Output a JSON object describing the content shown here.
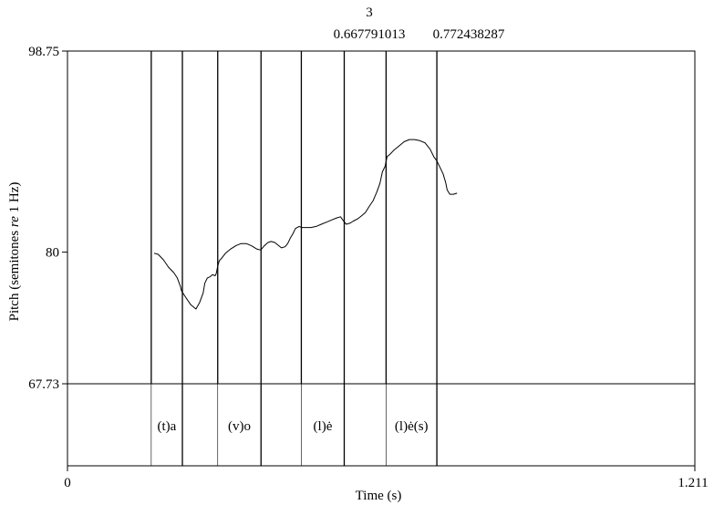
{
  "chart_data": {
    "type": "line",
    "xlabel": "Time (s)",
    "ylabel_parts": [
      "Pitch (semitones ",
      "re",
      " 1 Hz)"
    ],
    "xlim": [
      0,
      1.211
    ],
    "ylim": [
      67.73,
      98.75
    ],
    "x_ticks": [
      {
        "value": 0,
        "label": "0"
      },
      {
        "value": 1.211,
        "label": "1.211"
      }
    ],
    "y_ticks": [
      {
        "value": 98.75,
        "label": "98.75"
      },
      {
        "value": 80,
        "label": "80"
      },
      {
        "value": 67.73,
        "label": "67.73"
      }
    ],
    "top_annotations": [
      "3",
      "0.667791013",
      "0.772438287"
    ],
    "boundaries": [
      0.1617,
      0.2218,
      0.29,
      0.3736,
      0.4514,
      0.5342,
      0.615,
      0.713
    ],
    "boundary_minor": [
      false,
      true,
      false,
      true,
      false,
      true,
      false,
      true
    ],
    "segments": [
      {
        "label": "(t)a",
        "start": 0.1617,
        "end": 0.2218
      },
      {
        "label": "(v)o",
        "start": 0.29,
        "end": 0.3736
      },
      {
        "label": "(l)ė",
        "start": 0.4514,
        "end": 0.5342
      },
      {
        "label": "(l)ė(s)",
        "start": 0.615,
        "end": 0.713
      }
    ],
    "series": [
      {
        "x": [
          0.167,
          0.175,
          0.185,
          0.195,
          0.205,
          0.212,
          0.218,
          0.22,
          0.228,
          0.238,
          0.248,
          0.255,
          0.262,
          0.265,
          0.27,
          0.275,
          0.28,
          0.285,
          0.287,
          0.29,
          0.293,
          0.297,
          0.305,
          0.315,
          0.325,
          0.335,
          0.345,
          0.355,
          0.365,
          0.373,
          0.38,
          0.387,
          0.393,
          0.4,
          0.408,
          0.413,
          0.42,
          0.425,
          0.43,
          0.435,
          0.44,
          0.447,
          0.452,
          0.46,
          0.47,
          0.48,
          0.49,
          0.5,
          0.51,
          0.52,
          0.527,
          0.533,
          0.538,
          0.545,
          0.552,
          0.56,
          0.568,
          0.575,
          0.583,
          0.59,
          0.597,
          0.603,
          0.608,
          0.613,
          0.617,
          0.622,
          0.63,
          0.64,
          0.65,
          0.66,
          0.67,
          0.68,
          0.69,
          0.7,
          0.707,
          0.713,
          0.72,
          0.725,
          0.73,
          0.733,
          0.738,
          0.745,
          0.752
        ],
        "y": [
          79.9,
          79.8,
          79.3,
          78.6,
          78.1,
          77.6,
          76.8,
          76.4,
          75.8,
          75.1,
          74.7,
          75.3,
          76.2,
          77.1,
          77.6,
          77.7,
          77.9,
          77.8,
          78.0,
          78.7,
          79.2,
          79.4,
          79.9,
          80.3,
          80.6,
          80.8,
          80.8,
          80.6,
          80.3,
          80.2,
          80.6,
          80.9,
          81.0,
          80.9,
          80.6,
          80.4,
          80.5,
          80.8,
          81.3,
          81.7,
          82.2,
          82.4,
          82.3,
          82.3,
          82.3,
          82.4,
          82.6,
          82.8,
          83.0,
          83.2,
          83.3,
          82.9,
          82.6,
          82.7,
          82.9,
          83.1,
          83.4,
          83.7,
          84.3,
          84.8,
          85.6,
          86.4,
          87.5,
          88.0,
          88.9,
          89.1,
          89.5,
          89.9,
          90.3,
          90.5,
          90.5,
          90.4,
          90.2,
          89.6,
          88.9,
          88.5,
          87.8,
          87.3,
          86.5,
          85.8,
          85.4,
          85.4,
          85.5
        ]
      }
    ],
    "grid": false
  }
}
